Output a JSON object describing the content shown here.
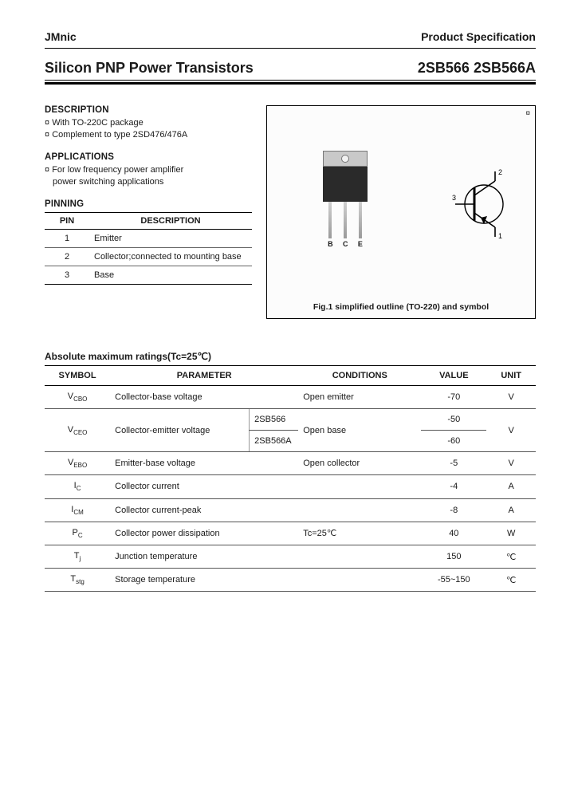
{
  "header": {
    "brand": "JMnic",
    "doc_type": "Product Specification"
  },
  "title": {
    "product_line": "Silicon PNP Power Transistors",
    "part_numbers": "2SB566 2SB566A"
  },
  "description": {
    "heading": "DESCRIPTION",
    "items": [
      "With TO-220C package",
      "Complement to type 2SD476/476A"
    ]
  },
  "applications": {
    "heading": "APPLICATIONS",
    "items": [
      "For low frequency power amplifier",
      "power switching applications"
    ]
  },
  "pinning": {
    "heading": "PINNING",
    "col_pin": "PIN",
    "col_desc": "DESCRIPTION",
    "rows": [
      {
        "pin": "1",
        "desc": "Emitter"
      },
      {
        "pin": "2",
        "desc": "Collector;connected to mounting base"
      },
      {
        "pin": "3",
        "desc": "Base"
      }
    ]
  },
  "figure": {
    "caption": "Fig.1 simplified outline (TO-220) and symbol",
    "legs": [
      "B",
      "C",
      "E"
    ],
    "sym_pins": {
      "p1": "1",
      "p2": "2",
      "p3": "3"
    }
  },
  "ratings": {
    "heading": "Absolute maximum ratings(Tc=25℃)",
    "cols": {
      "symbol": "SYMBOL",
      "parameter": "PARAMETER",
      "conditions": "CONDITIONS",
      "value": "VALUE",
      "unit": "UNIT"
    },
    "rows": [
      {
        "symbol": "V",
        "sub": "CBO",
        "param": "Collector-base voltage",
        "subparam": "",
        "cond": "Open emitter",
        "val": "-70",
        "unit": "V"
      },
      {
        "symbol": "V",
        "sub": "CEO",
        "param": "Collector-emitter voltage",
        "subparam": "2SB566",
        "cond": "Open base",
        "val": "-50",
        "unit": "V",
        "merged": true
      },
      {
        "symbol": "",
        "sub": "",
        "param": "",
        "subparam": "2SB566A",
        "cond": "",
        "val": "-60",
        "unit": "",
        "merged_after": true
      },
      {
        "symbol": "V",
        "sub": "EBO",
        "param": "Emitter-base voltage",
        "subparam": "",
        "cond": "Open collector",
        "val": "-5",
        "unit": "V"
      },
      {
        "symbol": "I",
        "sub": "C",
        "param": "Collector current",
        "subparam": "",
        "cond": "",
        "val": "-4",
        "unit": "A"
      },
      {
        "symbol": "I",
        "sub": "CM",
        "param": "Collector current-peak",
        "subparam": "",
        "cond": "",
        "val": "-8",
        "unit": "A"
      },
      {
        "symbol": "P",
        "sub": "C",
        "param": "Collector power dissipation",
        "subparam": "",
        "cond": "Tc=25℃",
        "val": "40",
        "unit": "W"
      },
      {
        "symbol": "T",
        "sub": "j",
        "param": "Junction temperature",
        "subparam": "",
        "cond": "",
        "val": "150",
        "unit": "℃"
      },
      {
        "symbol": "T",
        "sub": "stg",
        "param": "Storage temperature",
        "subparam": "",
        "cond": "",
        "val": "-55~150",
        "unit": "℃"
      }
    ]
  },
  "colors": {
    "text": "#1a1a1a",
    "rule": "#000000",
    "pkg_body": "#2a2a2a",
    "pkg_tab": "#c9c9c9"
  }
}
